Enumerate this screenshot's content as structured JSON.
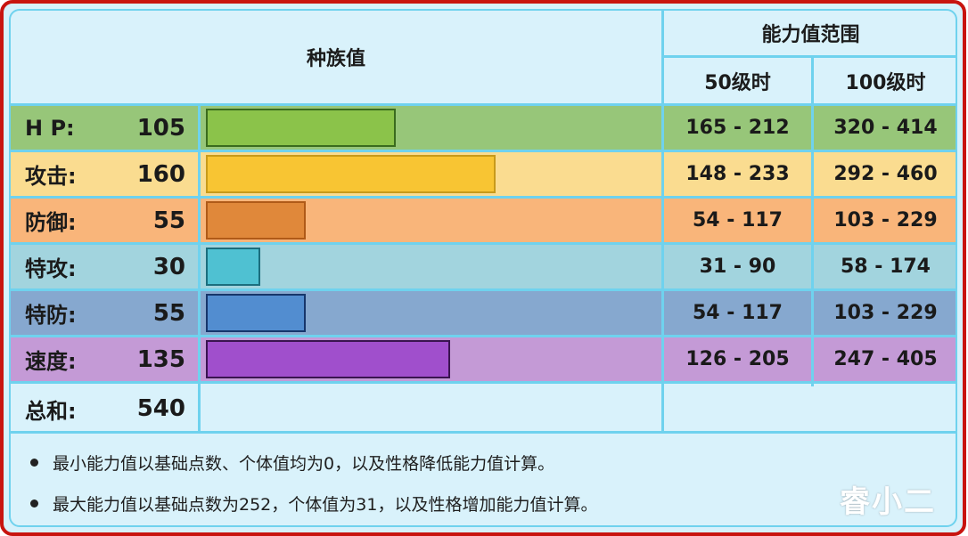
{
  "header": {
    "base_stats": "种族值",
    "stat_range": "能力值范围",
    "lv50": "50级时",
    "lv100": "100级时"
  },
  "stats": [
    {
      "label": "H P:",
      "value": "105",
      "lv50": "165 - 212",
      "lv100": "320 - 414",
      "row_color": "#97c679",
      "bar_color": "#8bc34a",
      "bar_border": "#3a6b1e"
    },
    {
      "label": "攻击:",
      "value": "160",
      "lv50": "148 - 233",
      "lv100": "292 - 460",
      "row_color": "#fadc90",
      "bar_color": "#f8c533",
      "bar_border": "#c89a1a"
    },
    {
      "label": "防御:",
      "value": "55",
      "lv50": "54 - 117",
      "lv100": "103 - 229",
      "row_color": "#f9b57a",
      "bar_color": "#e0883a",
      "bar_border": "#b05a18"
    },
    {
      "label": "特攻:",
      "value": "30",
      "lv50": "31 - 90",
      "lv100": "58 - 174",
      "row_color": "#a2d4de",
      "bar_color": "#4fc1d2",
      "bar_border": "#1b6e7e"
    },
    {
      "label": "特防:",
      "value": "55",
      "lv50": "54 - 117",
      "lv100": "103 - 229",
      "row_color": "#86a8cf",
      "bar_color": "#528dd0",
      "bar_border": "#16366b"
    },
    {
      "label": "速度:",
      "value": "135",
      "lv50": "126 - 205",
      "lv100": "247 - 405",
      "row_color": "#c49ad6",
      "bar_color": "#a04fcc",
      "bar_border": "#3a1450"
    }
  ],
  "total": {
    "label": "总和:",
    "value": "540"
  },
  "notes": [
    "最小能力值以基础点数、个体值均为0，以及性格降低能力值计算。",
    "最大能力值以基础点数为252，个体值为31，以及性格增加能力值计算。"
  ],
  "watermark": "睿小二",
  "colors": {
    "frame_border": "#c8140f",
    "grid_line": "#6fd2ee",
    "panel_bg": "#d9f2fb"
  },
  "chart_data": {
    "type": "bar",
    "orientation": "horizontal",
    "title": "种族值",
    "categories": [
      "HP",
      "攻击",
      "防御",
      "特攻",
      "特防",
      "速度"
    ],
    "values": [
      105,
      160,
      55,
      30,
      55,
      135
    ],
    "total": 540,
    "colors": [
      "#8bc34a",
      "#f8c533",
      "#e0883a",
      "#4fc1d2",
      "#528dd0",
      "#a04fcc"
    ],
    "table": {
      "columns": [
        "50级时",
        "100级时"
      ],
      "group_header": "能力值范围",
      "rows": [
        [
          "165 - 212",
          "320 - 414"
        ],
        [
          "148 - 233",
          "292 - 460"
        ],
        [
          "54 - 117",
          "103 - 229"
        ],
        [
          "31 - 90",
          "58 - 174"
        ],
        [
          "54 - 117",
          "103 - 229"
        ],
        [
          "126 - 205",
          "247 - 405"
        ]
      ]
    },
    "grid": false,
    "legend": "none"
  }
}
